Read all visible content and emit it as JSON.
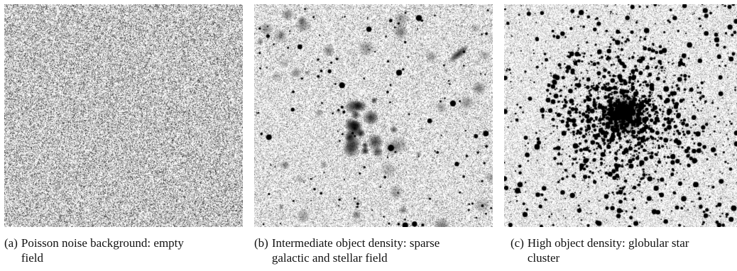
{
  "figure": {
    "panels": [
      {
        "tag": "(a)",
        "caption": "Poisson noise background: empty field",
        "density": "none"
      },
      {
        "tag": "(b)",
        "caption": "Intermediate object density: sparse galactic and stellar field",
        "density": "intermediate"
      },
      {
        "tag": "(c)",
        "caption": "High object density: globular star cluster",
        "density": "high"
      }
    ]
  }
}
